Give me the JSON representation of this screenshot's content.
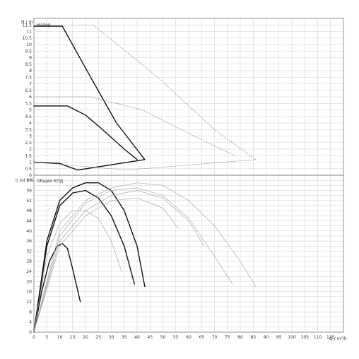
{
  "chart_data": [
    {
      "type": "line",
      "title": "Напор",
      "ylabel": "H / m",
      "xlabel": "",
      "xlim": [
        0,
        120
      ],
      "ylim": [
        0,
        12
      ],
      "ytick_step": 0.5,
      "grid": true,
      "series": [
        {
          "style": "dark",
          "points": [
            [
              0,
              11.4
            ],
            [
              11,
              11.4
            ],
            [
              22,
              7.5
            ],
            [
              32,
              4.0
            ],
            [
              43,
              1.2
            ],
            [
              17,
              0.4
            ],
            [
              10,
              0.9
            ],
            [
              0,
              1.0
            ]
          ]
        },
        {
          "style": "dark",
          "points": [
            [
              0,
              5.3
            ],
            [
              13,
              5.3
            ],
            [
              20,
              4.6
            ],
            [
              26,
              3.6
            ],
            [
              35,
              2.0
            ],
            [
              40,
              1.2
            ]
          ]
        },
        {
          "style": "light-dashed",
          "points": [
            [
              0,
              11.5
            ],
            [
              23,
              11.5
            ],
            [
              48,
              7.5
            ],
            [
              70,
              3.5
            ],
            [
              86,
              1.2
            ],
            [
              36,
              0.4
            ],
            [
              0,
              1.0
            ]
          ]
        },
        {
          "style": "light-dashed",
          "points": [
            [
              0,
              6.0
            ],
            [
              22,
              6.0
            ],
            [
              42,
              5.0
            ],
            [
              62,
              3.0
            ],
            [
              78,
              1.5
            ]
          ]
        }
      ]
    },
    {
      "type": "line",
      "title": "Общий КПД",
      "ylabel": "η tot / %",
      "xlabel": "Q / m³/h",
      "xlim": [
        0,
        120
      ],
      "ylim": [
        0,
        62
      ],
      "ytick_step": 2,
      "ytick_label_step": 4,
      "xtick_step": 5,
      "xtick_label_step": 5,
      "grid": true,
      "series": [
        {
          "style": "dark",
          "points": [
            [
              0,
              0
            ],
            [
              3,
              16
            ],
            [
              6,
              28
            ],
            [
              9,
              34
            ],
            [
              11,
              35
            ],
            [
              13,
              33
            ],
            [
              15,
              25
            ],
            [
              18,
              12
            ]
          ]
        },
        {
          "style": "dark",
          "points": [
            [
              0,
              0
            ],
            [
              5,
              34
            ],
            [
              10,
              50
            ],
            [
              15,
              55
            ],
            [
              20,
              56
            ],
            [
              25,
              53
            ],
            [
              30,
              46
            ],
            [
              35,
              34
            ],
            [
              39,
              19
            ]
          ]
        },
        {
          "style": "dark",
          "points": [
            [
              0,
              0
            ],
            [
              5,
              36
            ],
            [
              10,
              52
            ],
            [
              15,
              57
            ],
            [
              20,
              59
            ],
            [
              25,
              59
            ],
            [
              30,
              56
            ],
            [
              35,
              48
            ],
            [
              40,
              34
            ],
            [
              43,
              18
            ]
          ]
        },
        {
          "style": "light",
          "points": [
            [
              0,
              0
            ],
            [
              5,
              30
            ],
            [
              10,
              43
            ],
            [
              15,
              48
            ],
            [
              20,
              48
            ],
            [
              25,
              45
            ],
            [
              30,
              36
            ],
            [
              34,
              24
            ]
          ]
        },
        {
          "style": "light",
          "points": [
            [
              0,
              0
            ],
            [
              10,
              38
            ],
            [
              20,
              51
            ],
            [
              30,
              56
            ],
            [
              40,
              57
            ],
            [
              50,
              54
            ],
            [
              60,
              45
            ],
            [
              70,
              30
            ],
            [
              77,
              19
            ]
          ]
        },
        {
          "style": "light",
          "points": [
            [
              0,
              0
            ],
            [
              10,
              40
            ],
            [
              20,
              52
            ],
            [
              30,
              57
            ],
            [
              40,
              59
            ],
            [
              50,
              58
            ],
            [
              60,
              52
            ],
            [
              70,
              42
            ],
            [
              80,
              28
            ],
            [
              86,
              18
            ]
          ]
        },
        {
          "style": "light",
          "points": [
            [
              0,
              0
            ],
            [
              10,
              36
            ],
            [
              20,
              48
            ],
            [
              30,
              54
            ],
            [
              40,
              56
            ],
            [
              50,
              53
            ],
            [
              60,
              44
            ],
            [
              66,
              34
            ]
          ]
        },
        {
          "style": "light",
          "points": [
            [
              0,
              0
            ],
            [
              10,
              34
            ],
            [
              20,
              46
            ],
            [
              30,
              52
            ],
            [
              40,
              53
            ],
            [
              50,
              49
            ],
            [
              56,
              41
            ]
          ]
        }
      ]
    }
  ]
}
